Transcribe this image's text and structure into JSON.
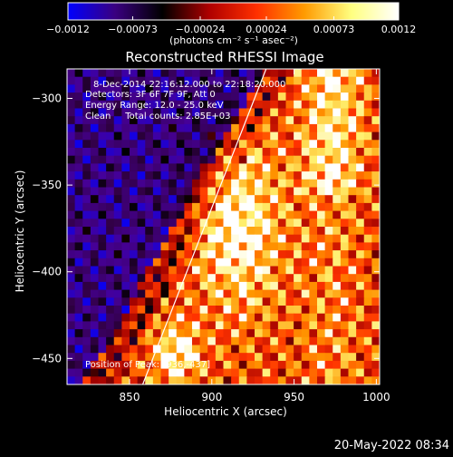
{
  "chart_data": {
    "type": "heatmap",
    "title": "Reconstructed RHESSI Image",
    "xlabel": "Heliocentric X (arcsec)",
    "ylabel": "Heliocentric Y (arcsec)",
    "xlim": [
      812,
      1002
    ],
    "ylim": [
      -465,
      -283
    ],
    "x_ticks": [
      850,
      900,
      950,
      1000
    ],
    "x_tick_labels": [
      "850",
      "900",
      "950",
      "1000"
    ],
    "y_ticks": [
      -300,
      -350,
      -400,
      -450
    ],
    "y_tick_labels": [
      "−300",
      "−350",
      "−400",
      "−450"
    ],
    "colorbar": {
      "range": [
        -0.0012,
        0.0012
      ],
      "tick_values": [
        -0.0012,
        -0.00073,
        -0.00024,
        0.00024,
        0.00073,
        0.0012
      ],
      "tick_labels": [
        "−0.0012",
        "−0.00073",
        "−0.00024",
        "0.00024",
        "0.00073",
        "0.0012"
      ],
      "unit_label": "(photons cm⁻² s⁻¹ asec⁻²)",
      "colors": [
        "#0000ff",
        "#3a0080",
        "#000000",
        "#b00000",
        "#ff3000",
        "#ff9a00",
        "#ffff80",
        "#ffffff"
      ]
    },
    "annotations": [
      "8-Dec-2014 22:16:12.000 to 22:18:20.000",
      "Detectors: 3F 6F 7F 9F, Att 0",
      "Energy Range: 12.0 - 25.0 keV",
      "Clean     Total counts: 2.85E+03"
    ],
    "peak_label": "Position of Peak: [936,-437]",
    "limb_line": {
      "x": [
        858,
        933
      ],
      "y": [
        -465,
        -283
      ]
    }
  },
  "footer": {
    "timestamp": "20-May-2022 08:34"
  }
}
